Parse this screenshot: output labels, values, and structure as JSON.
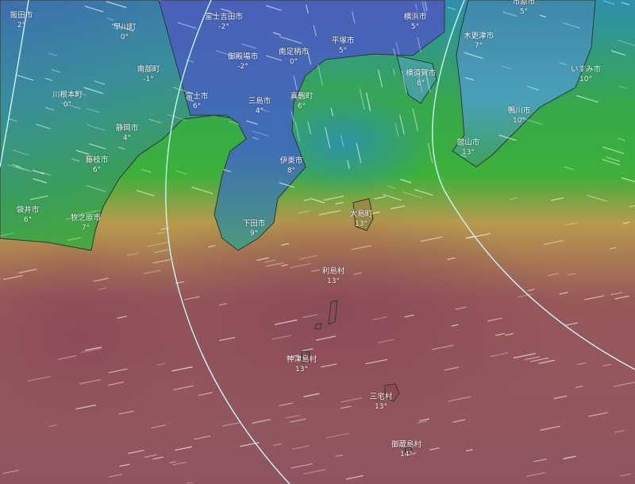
{
  "map": {
    "layer": "temperature",
    "unit": "°C",
    "colors": {
      "cold": "#3a4fa8",
      "cool": "#3f8fb0",
      "mild": "#2fae3a",
      "warm": "#b8904a",
      "hot": "#8e4f55",
      "grid_line": "#bff4ff"
    },
    "places": [
      {
        "name": "飯田市",
        "temp": "2°"
      },
      {
        "name": "早川町",
        "temp": "0°"
      },
      {
        "name": "",
        "temp": "4°"
      },
      {
        "name": "富士吉田市",
        "temp": "-2°"
      },
      {
        "name": "南足柄市",
        "temp": "0°"
      },
      {
        "name": "御殿場市",
        "temp": "-2°"
      },
      {
        "name": "南部町",
        "temp": "-1°"
      },
      {
        "name": "川根本町",
        "temp": "0°"
      },
      {
        "name": "富士市",
        "temp": "6°"
      },
      {
        "name": "三島市",
        "temp": "4°"
      },
      {
        "name": "真鶴町",
        "temp": "6°"
      },
      {
        "name": "静岡市",
        "temp": "4°"
      },
      {
        "name": "藤枝市",
        "temp": "6°"
      },
      {
        "name": "伊東市",
        "temp": "8°"
      },
      {
        "name": "袋井市",
        "temp": "6°"
      },
      {
        "name": "牧之原市",
        "temp": "7°"
      },
      {
        "name": "下田市",
        "temp": "9°"
      },
      {
        "name": "平塚市",
        "temp": "5°"
      },
      {
        "name": "横浜市",
        "temp": "5°"
      },
      {
        "name": "市原市",
        "temp": "5°"
      },
      {
        "name": "木更津市",
        "temp": "7°"
      },
      {
        "name": "横須賀市",
        "temp": "8°"
      },
      {
        "name": "いすみ市",
        "temp": "10°"
      },
      {
        "name": "鴨川市",
        "temp": "10°"
      },
      {
        "name": "館山市",
        "temp": "13°"
      },
      {
        "name": "大島町",
        "temp": "13°"
      },
      {
        "name": "利島村",
        "temp": "13°"
      },
      {
        "name": "神津島村",
        "temp": "13°"
      },
      {
        "name": "三宅村",
        "temp": "13°"
      },
      {
        "name": "御蔵島村",
        "temp": "14°"
      }
    ]
  }
}
